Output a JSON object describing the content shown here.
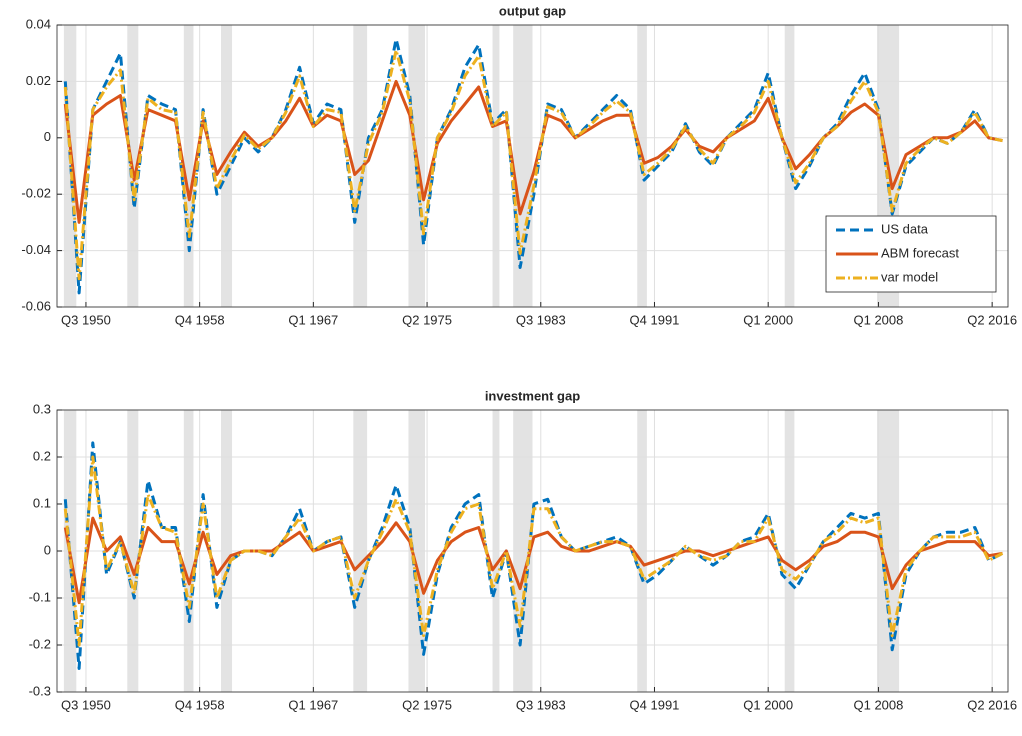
{
  "chart_data": [
    {
      "type": "line",
      "title": "output gap",
      "legend": "southeast",
      "grid": true,
      "x": [
        1949,
        1950,
        1951,
        1952,
        1953,
        1954,
        1955,
        1956,
        1957,
        1958,
        1959,
        1960,
        1961,
        1962,
        1963,
        1964,
        1965,
        1966,
        1967,
        1968,
        1969,
        1970,
        1971,
        1972,
        1973,
        1974,
        1975,
        1976,
        1977,
        1978,
        1979,
        1980,
        1981,
        1982,
        1983,
        1984,
        1985,
        1986,
        1987,
        1988,
        1989,
        1990,
        1991,
        1992,
        1993,
        1994,
        1995,
        1996,
        1997,
        1998,
        1999,
        2000,
        2001,
        2002,
        2003,
        2004,
        2005,
        2006,
        2007,
        2008,
        2009,
        2010,
        2011,
        2012,
        2013,
        2014,
        2015,
        2016,
        2017
      ],
      "xlim": [
        1948.4,
        2017.4
      ],
      "xticks": [
        {
          "value": 1950.5,
          "label": "Q3 1950"
        },
        {
          "value": 1958.75,
          "label": "Q4 1958"
        },
        {
          "value": 1967.0,
          "label": "Q1 1967"
        },
        {
          "value": 1975.25,
          "label": "Q2 1975"
        },
        {
          "value": 1983.5,
          "label": "Q3 1983"
        },
        {
          "value": 1991.75,
          "label": "Q4 1991"
        },
        {
          "value": 2000.0,
          "label": "Q1 2000"
        },
        {
          "value": 2008.0,
          "label": "Q1 2008"
        },
        {
          "value": 2016.25,
          "label": "Q2 2016"
        }
      ],
      "ylim": [
        -0.06,
        0.04
      ],
      "yticks": [
        -0.06,
        -0.04,
        -0.02,
        0,
        0.02,
        0.04
      ],
      "shaded_periods": [
        [
          1948.9,
          1949.8
        ],
        [
          1953.5,
          1954.3
        ],
        [
          1957.6,
          1958.3
        ],
        [
          1960.3,
          1961.1
        ],
        [
          1969.9,
          1970.9
        ],
        [
          1973.9,
          1975.1
        ],
        [
          1980.0,
          1980.5
        ],
        [
          1981.5,
          1982.9
        ],
        [
          1990.5,
          1991.2
        ],
        [
          2001.2,
          2001.9
        ],
        [
          2007.9,
          2009.5
        ]
      ],
      "series": [
        {
          "name": "US data",
          "color": "#0072BD",
          "style": "dashed",
          "values": [
            0.02,
            -0.055,
            0.01,
            0.02,
            0.03,
            -0.025,
            0.015,
            0.012,
            0.01,
            -0.04,
            0.01,
            -0.02,
            -0.01,
            0.0,
            -0.005,
            0.0,
            0.01,
            0.025,
            0.005,
            0.012,
            0.01,
            -0.03,
            0.0,
            0.01,
            0.035,
            0.015,
            -0.038,
            0.0,
            0.01,
            0.025,
            0.033,
            0.005,
            0.01,
            -0.046,
            -0.02,
            0.012,
            0.01,
            0.0,
            0.005,
            0.01,
            0.015,
            0.01,
            -0.015,
            -0.01,
            -0.005,
            0.005,
            -0.005,
            -0.01,
            0.0,
            0.005,
            0.01,
            0.023,
            0.0,
            -0.018,
            -0.01,
            0.0,
            0.005,
            0.015,
            0.023,
            0.01,
            -0.027,
            -0.01,
            -0.005,
            0.0,
            -0.002,
            0.002,
            0.01,
            0.0,
            -0.001
          ]
        },
        {
          "name": "ABM forecast",
          "color": "#D95319",
          "style": "solid",
          "values": [
            0.012,
            -0.03,
            0.008,
            0.012,
            0.015,
            -0.015,
            0.01,
            0.008,
            0.006,
            -0.022,
            0.006,
            -0.013,
            -0.005,
            0.002,
            -0.003,
            0.0,
            0.006,
            0.014,
            0.004,
            0.008,
            0.006,
            -0.013,
            -0.008,
            0.006,
            0.02,
            0.008,
            -0.022,
            -0.002,
            0.006,
            0.012,
            0.018,
            0.004,
            0.006,
            -0.027,
            -0.012,
            0.008,
            0.006,
            0.0,
            0.003,
            0.006,
            0.008,
            0.008,
            -0.009,
            -0.007,
            -0.003,
            0.003,
            -0.003,
            -0.005,
            0.0,
            0.003,
            0.006,
            0.014,
            0.0,
            -0.011,
            -0.006,
            0.0,
            0.004,
            0.009,
            0.012,
            0.008,
            -0.018,
            -0.006,
            -0.003,
            0.0,
            0.0,
            0.002,
            0.006,
            0.0,
            -0.001
          ]
        },
        {
          "name": "var model",
          "color": "#EDB120",
          "style": "dashdot",
          "values": [
            0.018,
            -0.05,
            0.01,
            0.018,
            0.024,
            -0.022,
            0.014,
            0.01,
            0.009,
            -0.035,
            0.009,
            -0.018,
            -0.008,
            0.001,
            -0.004,
            0.0,
            0.009,
            0.022,
            0.004,
            0.01,
            0.009,
            -0.026,
            -0.002,
            0.009,
            0.031,
            0.013,
            -0.034,
            0.0,
            0.009,
            0.022,
            0.029,
            0.004,
            0.009,
            -0.041,
            -0.017,
            0.011,
            0.009,
            0.0,
            0.004,
            0.009,
            0.013,
            0.009,
            -0.013,
            -0.009,
            -0.004,
            0.004,
            -0.004,
            -0.009,
            0.0,
            0.004,
            0.009,
            0.02,
            0.0,
            -0.016,
            -0.009,
            0.0,
            0.004,
            0.013,
            0.02,
            0.009,
            -0.026,
            -0.009,
            -0.004,
            0.0,
            -0.002,
            0.002,
            0.009,
            0.0,
            -0.001
          ]
        }
      ]
    },
    {
      "type": "line",
      "title": "investment gap",
      "grid": true,
      "x": [
        1949,
        1950,
        1951,
        1952,
        1953,
        1954,
        1955,
        1956,
        1957,
        1958,
        1959,
        1960,
        1961,
        1962,
        1963,
        1964,
        1965,
        1966,
        1967,
        1968,
        1969,
        1970,
        1971,
        1972,
        1973,
        1974,
        1975,
        1976,
        1977,
        1978,
        1979,
        1980,
        1981,
        1982,
        1983,
        1984,
        1985,
        1986,
        1987,
        1988,
        1989,
        1990,
        1991,
        1992,
        1993,
        1994,
        1995,
        1996,
        1997,
        1998,
        1999,
        2000,
        2001,
        2002,
        2003,
        2004,
        2005,
        2006,
        2007,
        2008,
        2009,
        2010,
        2011,
        2012,
        2013,
        2014,
        2015,
        2016,
        2017
      ],
      "xlim": [
        1948.4,
        2017.4
      ],
      "xticks": [
        {
          "value": 1950.5,
          "label": "Q3 1950"
        },
        {
          "value": 1958.75,
          "label": "Q4 1958"
        },
        {
          "value": 1967.0,
          "label": "Q1 1967"
        },
        {
          "value": 1975.25,
          "label": "Q2 1975"
        },
        {
          "value": 1983.5,
          "label": "Q3 1983"
        },
        {
          "value": 1991.75,
          "label": "Q4 1991"
        },
        {
          "value": 2000.0,
          "label": "Q1 2000"
        },
        {
          "value": 2008.0,
          "label": "Q1 2008"
        },
        {
          "value": 2016.25,
          "label": "Q2 2016"
        }
      ],
      "ylim": [
        -0.3,
        0.3
      ],
      "yticks": [
        -0.3,
        -0.2,
        -0.1,
        0,
        0.1,
        0.2,
        0.3
      ],
      "shaded_periods": [
        [
          1948.9,
          1949.8
        ],
        [
          1953.5,
          1954.3
        ],
        [
          1957.6,
          1958.3
        ],
        [
          1960.3,
          1961.1
        ],
        [
          1969.9,
          1970.9
        ],
        [
          1973.9,
          1975.1
        ],
        [
          1980.0,
          1980.5
        ],
        [
          1981.5,
          1982.9
        ],
        [
          1990.5,
          1991.2
        ],
        [
          2001.2,
          2001.9
        ],
        [
          2007.9,
          2009.5
        ]
      ],
      "series": [
        {
          "color": "#0072BD",
          "style": "dashed",
          "values": [
            0.11,
            -0.25,
            0.23,
            -0.05,
            0.02,
            -0.1,
            0.15,
            0.05,
            0.05,
            -0.15,
            0.12,
            -0.12,
            -0.02,
            0.0,
            0.0,
            -0.01,
            0.03,
            0.09,
            0.0,
            0.02,
            0.03,
            -0.12,
            -0.02,
            0.05,
            0.14,
            0.05,
            -0.22,
            -0.05,
            0.05,
            0.1,
            0.12,
            -0.1,
            0.0,
            -0.2,
            0.1,
            0.11,
            0.03,
            0.0,
            0.01,
            0.02,
            0.03,
            0.01,
            -0.07,
            -0.05,
            -0.02,
            0.01,
            -0.01,
            -0.03,
            -0.01,
            0.02,
            0.03,
            0.08,
            -0.05,
            -0.08,
            -0.03,
            0.02,
            0.05,
            0.08,
            0.07,
            0.08,
            -0.21,
            -0.05,
            0.0,
            0.03,
            0.04,
            0.04,
            0.05,
            -0.02,
            -0.005
          ]
        },
        {
          "color": "#D95319",
          "style": "solid",
          "values": [
            0.05,
            -0.11,
            0.07,
            0.0,
            0.03,
            -0.05,
            0.05,
            0.02,
            0.02,
            -0.07,
            0.04,
            -0.05,
            -0.01,
            0.0,
            0.0,
            0.0,
            0.02,
            0.04,
            0.0,
            0.01,
            0.02,
            -0.04,
            -0.01,
            0.02,
            0.06,
            0.02,
            -0.09,
            -0.02,
            0.02,
            0.04,
            0.05,
            -0.04,
            0.0,
            -0.08,
            0.03,
            0.04,
            0.01,
            0.0,
            0.0,
            0.01,
            0.02,
            0.01,
            -0.03,
            -0.02,
            -0.01,
            0.0,
            0.0,
            -0.01,
            0.0,
            0.01,
            0.02,
            0.03,
            -0.02,
            -0.04,
            -0.02,
            0.01,
            0.02,
            0.04,
            0.04,
            0.03,
            -0.08,
            -0.03,
            0.0,
            0.01,
            0.02,
            0.02,
            0.02,
            -0.01,
            -0.005
          ]
        },
        {
          "color": "#EDB120",
          "style": "dashdot",
          "values": [
            0.09,
            -0.2,
            0.2,
            -0.04,
            0.02,
            -0.09,
            0.12,
            0.05,
            0.04,
            -0.12,
            0.1,
            -0.1,
            -0.02,
            0.0,
            0.0,
            -0.01,
            0.03,
            0.07,
            0.0,
            0.02,
            0.03,
            -0.1,
            -0.02,
            0.04,
            0.11,
            0.04,
            -0.18,
            -0.04,
            0.04,
            0.09,
            0.1,
            -0.08,
            0.0,
            -0.16,
            0.09,
            0.09,
            0.03,
            0.0,
            0.01,
            0.02,
            0.02,
            0.01,
            -0.06,
            -0.04,
            -0.02,
            0.01,
            -0.01,
            -0.02,
            -0.01,
            0.02,
            0.02,
            0.07,
            -0.04,
            -0.06,
            -0.03,
            0.02,
            0.04,
            0.07,
            0.06,
            0.07,
            -0.18,
            -0.04,
            0.0,
            0.03,
            0.03,
            0.03,
            0.04,
            -0.02,
            -0.005
          ]
        }
      ]
    }
  ]
}
